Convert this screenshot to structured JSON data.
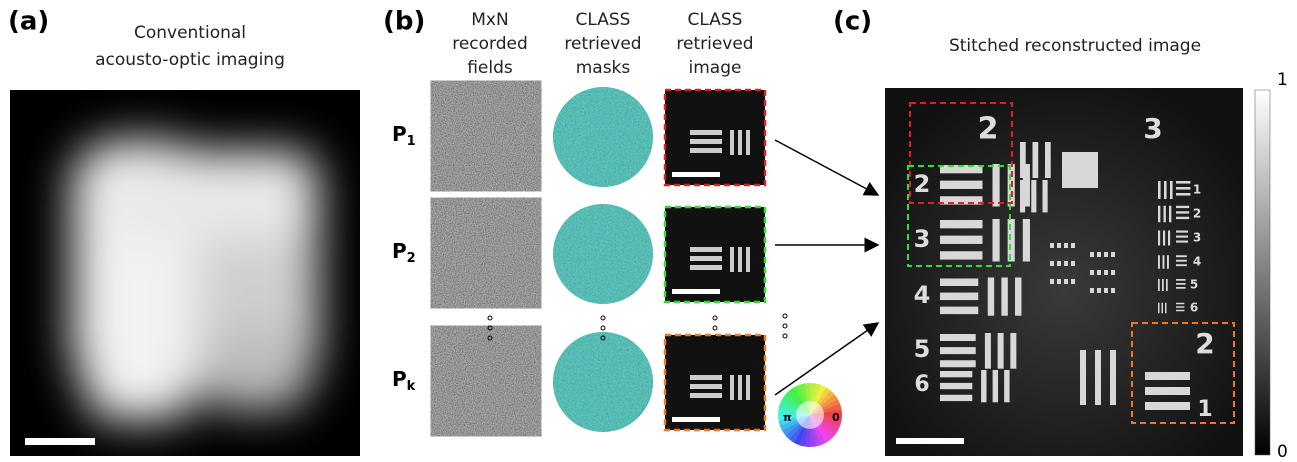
{
  "panel_a": {
    "label": "(a)",
    "title": [
      "Conventional",
      "acousto-optic imaging"
    ]
  },
  "panel_b": {
    "label": "(b)",
    "columns": [
      [
        "MxN",
        "recorded",
        "fields"
      ],
      [
        "CLASS",
        "retrieved",
        "masks"
      ],
      [
        "CLASS",
        "retrieved",
        "image"
      ]
    ],
    "rows": [
      {
        "name": "P",
        "sub": "1"
      },
      {
        "name": "P",
        "sub": "2"
      },
      {
        "name": "P",
        "sub": "k"
      }
    ],
    "phase_wheel": [
      "π",
      "0"
    ]
  },
  "panel_c": {
    "label": "(c)",
    "title": "Stitched reconstructed image",
    "colorbar": [
      "1",
      "0"
    ],
    "target_labels": [
      "2",
      "2",
      "3",
      "4",
      "5",
      "6",
      "3",
      "1",
      "2",
      "3",
      "4",
      "5",
      "6",
      "2",
      "1"
    ]
  }
}
